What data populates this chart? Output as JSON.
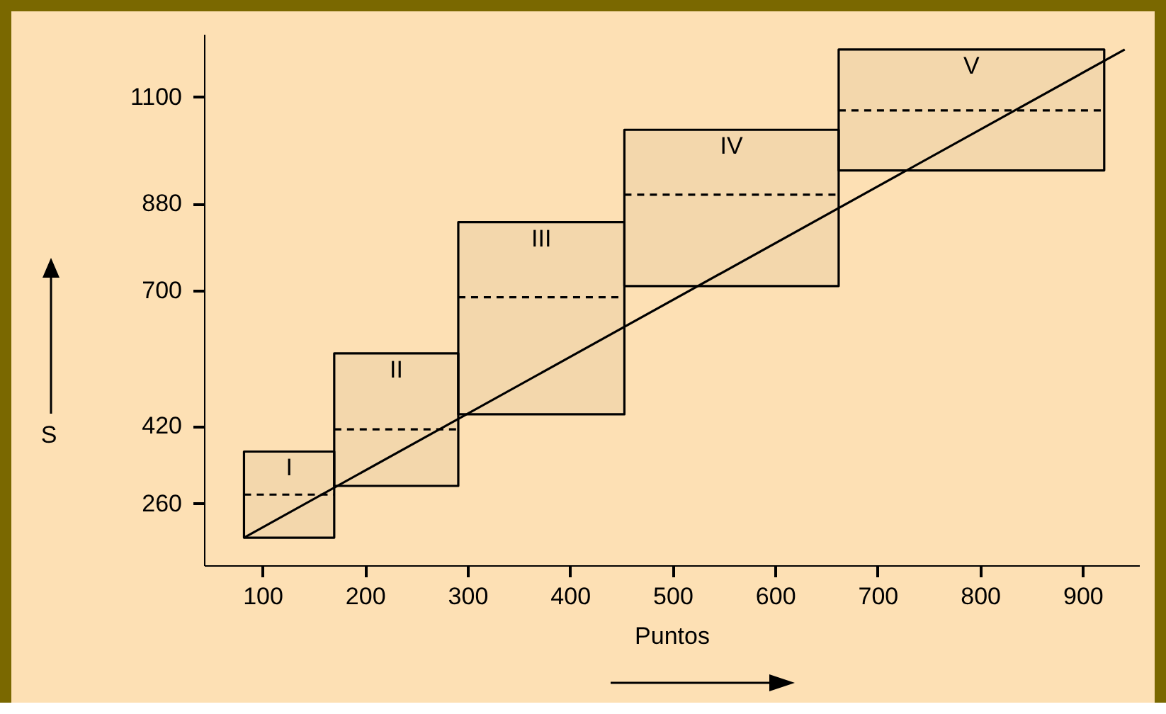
{
  "chart_data": {
    "type": "line",
    "xlabel": "Puntos",
    "ylabel": "S",
    "xlim": [
      43,
      955
    ],
    "xticks": [
      100,
      200,
      300,
      400,
      500,
      600,
      700,
      800,
      900
    ],
    "ylim": [
      132,
      1230
    ],
    "yticks": [
      260,
      420,
      700,
      880,
      1100
    ],
    "grid": false,
    "series": [
      {
        "name": "I",
        "color": "#000000",
        "line_style": "dashed",
        "x": [
          82,
          170
        ],
        "values": [
          278,
          278
        ],
        "lower": [
          189,
          189
        ],
        "upper": [
          367,
          367
        ]
      },
      {
        "name": "II",
        "color": "#000000",
        "line_style": "dashed",
        "x": [
          170,
          291
        ],
        "values": [
          413,
          413
        ],
        "lower": [
          296,
          296
        ],
        "upper": [
          570,
          570
        ]
      },
      {
        "name": "III",
        "color": "#000000",
        "line_style": "dashed",
        "x": [
          291,
          453
        ],
        "values": [
          686,
          686
        ],
        "lower": [
          444,
          444
        ],
        "upper": [
          841,
          841
        ]
      },
      {
        "name": "IV",
        "color": "#000000",
        "line_style": "dashed",
        "x": [
          453,
          662
        ],
        "values": [
          898,
          898
        ],
        "lower": [
          709,
          709
        ],
        "upper": [
          1032,
          1032
        ]
      },
      {
        "name": "V",
        "color": "#000000",
        "line_style": "dashed",
        "x": [
          662,
          921
        ],
        "values": [
          1072,
          1072
        ],
        "lower": [
          948,
          948
        ],
        "upper": [
          1198,
          1198
        ]
      },
      {
        "color": "#000000",
        "line_style": "solid",
        "x": [
          82,
          941
        ],
        "values": [
          189,
          1198
        ]
      }
    ]
  }
}
